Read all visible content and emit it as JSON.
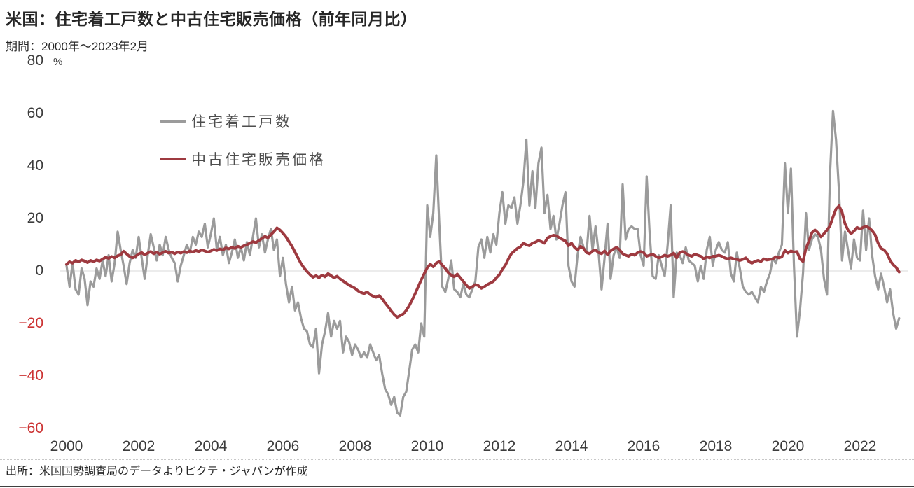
{
  "header": {
    "title": "米国：住宅着工戸数と中古住宅販売価格（前年同月比）",
    "subtitle": "期間：2000年～2023年2月"
  },
  "source": "出所：米国国勢調査局のデータよりピクテ・ジャパンが作成",
  "chart_data": {
    "type": "line",
    "title": "米国：住宅着工戸数と中古住宅販売価格（前年同月比）",
    "period": "2000年～2023年2月",
    "unit_label": "%",
    "frequency": "monthly",
    "x_start": {
      "year": 2000,
      "month": 1
    },
    "x_end": {
      "year": 2023,
      "month": 2
    },
    "x_ticks": [
      2000,
      2002,
      2004,
      2006,
      2008,
      2010,
      2012,
      2014,
      2016,
      2018,
      2020,
      2022
    ],
    "y_ticks": [
      80,
      60,
      40,
      20,
      0,
      -20,
      -40,
      -60
    ],
    "ylim": [
      -60,
      80
    ],
    "grid": "zero line only",
    "legend_position": "top-left inside plot",
    "colors": {
      "tick": "#3C3C3C",
      "negative_tick": "#CC3333",
      "zero_line": "#D9D9D9"
    },
    "series": [
      {
        "name": "住宅着工戸数",
        "color": "#9B9B9B",
        "values": [
          2,
          -6,
          3,
          -7,
          -9,
          1,
          -3,
          -13,
          -4,
          -6,
          1,
          -3,
          4,
          -2,
          6,
          -4,
          3,
          15,
          8,
          2,
          -5,
          3,
          8,
          5,
          13,
          5,
          -3,
          6,
          14,
          9,
          4,
          10,
          6,
          13,
          8,
          5,
          3,
          -4,
          2,
          6,
          10,
          7,
          13,
          10,
          15,
          13,
          18,
          9,
          14,
          20,
          8,
          13,
          6,
          10,
          3,
          7,
          12,
          5,
          9,
          4,
          11,
          6,
          13,
          20,
          9,
          14,
          7,
          12,
          16,
          8,
          12,
          -2,
          5,
          -5,
          -12,
          -6,
          -15,
          -12,
          -18,
          -22,
          -23,
          -28,
          -29,
          -22,
          -39,
          -28,
          -23,
          -16,
          -25,
          -19,
          -22,
          -19,
          -31,
          -25,
          -27,
          -32,
          -28,
          -30,
          -33,
          -31,
          -33,
          -28,
          -31,
          -34,
          -32,
          -39,
          -45,
          -47,
          -51,
          -48,
          -54,
          -55,
          -48,
          -46,
          -38,
          -30,
          -28,
          -31,
          -20,
          -25,
          25,
          13,
          22,
          44,
          18,
          -6,
          -8,
          -3,
          4,
          -7,
          -8,
          -10,
          -5,
          -9,
          -10,
          -7,
          -4,
          9,
          12,
          5,
          13,
          7,
          14,
          10,
          22,
          30,
          18,
          25,
          24,
          28,
          18,
          25,
          34,
          50,
          25,
          38,
          24,
          41,
          47,
          22,
          29,
          16,
          21,
          12,
          18,
          25,
          30,
          2,
          -4,
          -6,
          6,
          13,
          9,
          7,
          21,
          8,
          17,
          7,
          -7,
          5,
          18,
          -3,
          6,
          9,
          5,
          33,
          12,
          16,
          17,
          16,
          16,
          6,
          2,
          36,
          14,
          -2,
          -3,
          6,
          2,
          -2,
          10,
          25,
          -10,
          7,
          6,
          3,
          9,
          4,
          3,
          2,
          -4,
          2,
          -3,
          8,
          13,
          2,
          8,
          11,
          8,
          7,
          11,
          -1,
          -4,
          7,
          1,
          -6,
          -8,
          -9,
          -8,
          -10,
          -12,
          -6,
          -8,
          -4,
          -1,
          5,
          3,
          7,
          10,
          41,
          22,
          39,
          2,
          -25,
          -15,
          -1,
          22,
          8,
          12,
          14,
          13,
          8,
          -3,
          -9,
          37,
          61,
          50,
          30,
          4,
          15,
          8,
          1,
          12,
          5,
          4,
          23,
          8,
          20,
          6,
          -2,
          -7,
          -1,
          -6,
          -12,
          -7,
          -16,
          -22,
          -18
        ]
      },
      {
        "name": "中古住宅販売価格",
        "color": "#9E3A40",
        "values": [
          2.5,
          3.5,
          3.0,
          4.0,
          3.5,
          4.2,
          3.8,
          3.2,
          4.0,
          3.6,
          4.2,
          3.8,
          4.5,
          5.2,
          4.8,
          5.5,
          5.0,
          5.8,
          6.2,
          7.5,
          6.5,
          5.5,
          5.0,
          5.6,
          6.5,
          7.0,
          6.2,
          6.8,
          7.4,
          6.6,
          7.2,
          6.4,
          7.0,
          7.5,
          6.8,
          7.2,
          6.6,
          7.2,
          6.8,
          7.4,
          7.0,
          7.6,
          7.2,
          7.8,
          7.4,
          8.0,
          7.6,
          7.2,
          7.6,
          8.2,
          7.8,
          8.4,
          8.0,
          8.8,
          8.4,
          9.0,
          8.6,
          9.4,
          9.0,
          9.6,
          10.0,
          10.6,
          11.2,
          10.8,
          11.6,
          12.4,
          13.2,
          12.6,
          13.8,
          15.0,
          16.4,
          15.6,
          14.4,
          13.0,
          11.2,
          9.4,
          7.2,
          5.0,
          2.8,
          1.2,
          -0.2,
          -1.4,
          -2.4,
          -1.8,
          -2.6,
          -1.6,
          -2.2,
          -1.0,
          -1.8,
          -2.6,
          -2.0,
          -3.0,
          -3.8,
          -4.6,
          -5.4,
          -6.0,
          -6.6,
          -7.6,
          -8.2,
          -8.6,
          -8.0,
          -9.0,
          -9.6,
          -10.0,
          -9.4,
          -10.6,
          -12.2,
          -13.6,
          -15.2,
          -16.6,
          -17.6,
          -17.0,
          -16.4,
          -15.0,
          -13.2,
          -11.0,
          -8.6,
          -6.0,
          -3.4,
          -1.0,
          1.2,
          2.6,
          1.6,
          3.0,
          3.6,
          2.2,
          1.0,
          -0.6,
          -1.6,
          -2.2,
          -1.2,
          -2.6,
          -4.0,
          -5.4,
          -6.6,
          -6.0,
          -5.2,
          -5.6,
          -6.6,
          -6.0,
          -5.2,
          -4.6,
          -4.0,
          -2.6,
          -1.4,
          0.6,
          2.2,
          4.6,
          6.6,
          7.6,
          8.6,
          9.2,
          10.6,
          10.0,
          9.6,
          10.6,
          11.0,
          11.6,
          11.2,
          10.6,
          12.6,
          13.2,
          13.6,
          13.4,
          12.6,
          12.0,
          11.4,
          9.6,
          10.6,
          9.0,
          8.0,
          9.4,
          8.6,
          7.0,
          6.6,
          7.6,
          8.0,
          7.0,
          6.6,
          7.6,
          6.2,
          7.6,
          8.4,
          9.0,
          8.0,
          6.6,
          6.0,
          5.6,
          6.4,
          6.0,
          7.0,
          7.4,
          7.0,
          5.6,
          6.0,
          6.4,
          5.6,
          5.0,
          5.4,
          6.0,
          5.6,
          6.0,
          6.8,
          5.0,
          7.0,
          7.4,
          6.8,
          6.0,
          5.6,
          6.4,
          6.0,
          5.6,
          4.6,
          5.4,
          5.0,
          5.6,
          5.6,
          6.0,
          5.6,
          5.0,
          4.6,
          5.0,
          4.6,
          4.4,
          4.0,
          4.4,
          5.0,
          3.6,
          3.0,
          3.6,
          4.0,
          3.6,
          4.6,
          4.2,
          4.4,
          4.6,
          5.4,
          5.0,
          5.4,
          7.8,
          6.8,
          7.6,
          7.2,
          7.4,
          4.6,
          3.6,
          8.6,
          11.4,
          14.6,
          15.6,
          14.6,
          13.0,
          14.2,
          15.6,
          17.2,
          20.6,
          23.6,
          24.8,
          22.4,
          18.0,
          15.6,
          14.2,
          15.2,
          16.6,
          16.0,
          16.6,
          17.0,
          16.4,
          15.4,
          13.8,
          10.6,
          8.6,
          8.0,
          6.6,
          4.0,
          2.4,
          1.4,
          -0.4
        ]
      }
    ]
  }
}
